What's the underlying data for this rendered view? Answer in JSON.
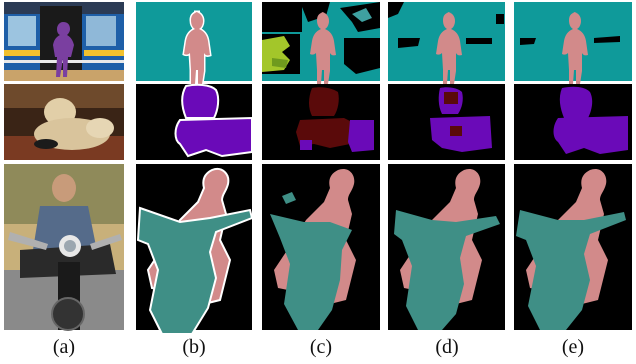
{
  "figure": {
    "column_labels": [
      "(a)",
      "(b)",
      "(c)",
      "(d)",
      "(e)"
    ]
  },
  "colors": {
    "teal": "#0f9a9a",
    "pink": "#d28a8a",
    "purple": "#6a0ab8",
    "dark_red": "#5a0a0a",
    "seg_teal": "#3f8f86",
    "black": "#000000",
    "boundary": "#ffffff",
    "lime": "#a3c62a"
  }
}
